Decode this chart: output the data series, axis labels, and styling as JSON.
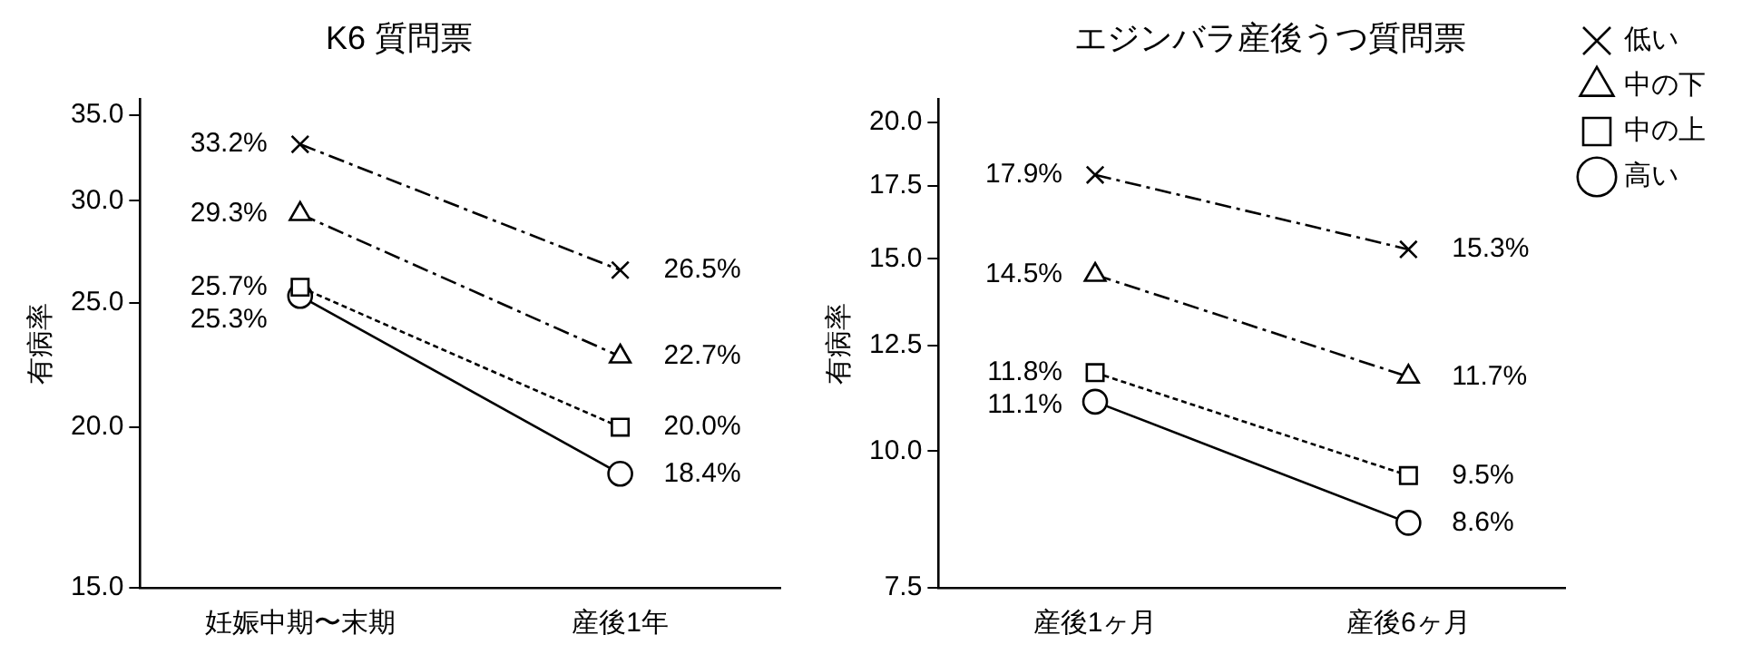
{
  "chart_data": [
    {
      "type": "line",
      "title": "K6 質問票",
      "ylabel": "有病率",
      "categories": [
        "妊娠中期〜末期",
        "産後1年"
      ],
      "log": true,
      "ylim": [
        15,
        36
      ],
      "yticks": [
        {
          "value": 15,
          "label": "15.0"
        },
        {
          "value": 20,
          "label": "20.0"
        },
        {
          "value": 25,
          "label": "25.0"
        },
        {
          "value": 30,
          "label": "30.0"
        },
        {
          "value": 35,
          "label": "35.0"
        }
      ],
      "grid": false,
      "legend": false,
      "series": [
        {
          "color": "#000000",
          "marker": "cross",
          "line_style": "dashed",
          "values": [
            33.2,
            26.5
          ],
          "value_labels": [
            "33.2%",
            "26.5%"
          ]
        },
        {
          "color": "#000000",
          "marker": "triangle",
          "line_style": "dashed",
          "values": [
            29.3,
            22.7
          ],
          "value_labels": [
            "29.3%",
            "22.7%"
          ]
        },
        {
          "color": "#000000",
          "marker": "square",
          "line_style": "dotted",
          "values": [
            25.7,
            20.0
          ],
          "value_labels": [
            "25.7%",
            "20.0%"
          ]
        },
        {
          "color": "#000000",
          "marker": "circle",
          "line_style": "solid",
          "values": [
            25.3,
            18.4
          ],
          "value_labels": [
            "25.3%",
            "18.4%"
          ]
        }
      ]
    },
    {
      "type": "line",
      "title": "エジンバラ産後うつ質問票",
      "ylabel": "有病率",
      "categories": [
        "産後1ヶ月",
        "産後6ヶ月"
      ],
      "log": true,
      "ylim": [
        7.5,
        21
      ],
      "yticks": [
        7.5,
        {
          "value": 10,
          "label": "10.0"
        },
        12.5,
        {
          "value": 15,
          "label": "15.0"
        },
        17.5,
        {
          "value": 20,
          "label": "20.0"
        }
      ],
      "grid": false,
      "legend": "top right",
      "series": [
        {
          "name": "低い",
          "color": "#000000",
          "marker": "cross",
          "line_style": "dashed",
          "values": [
            17.9,
            15.3
          ],
          "value_labels": [
            "17.9%",
            "15.3%"
          ]
        },
        {
          "name": "中の下",
          "color": "#000000",
          "marker": "triangle",
          "line_style": "dashed",
          "values": [
            14.5,
            11.7
          ],
          "value_labels": [
            "14.5%",
            "11.7%"
          ]
        },
        {
          "name": "中の上",
          "color": "#000000",
          "marker": "square",
          "line_style": "dotted",
          "values": [
            11.8,
            9.5
          ],
          "value_labels": [
            "11.8%",
            "9.5%"
          ]
        },
        {
          "name": "高い",
          "color": "#000000",
          "marker": "circle",
          "line_style": "solid",
          "values": [
            11.1,
            8.6
          ],
          "value_labels": [
            "11.1%",
            "8.6%"
          ]
        }
      ]
    }
  ]
}
